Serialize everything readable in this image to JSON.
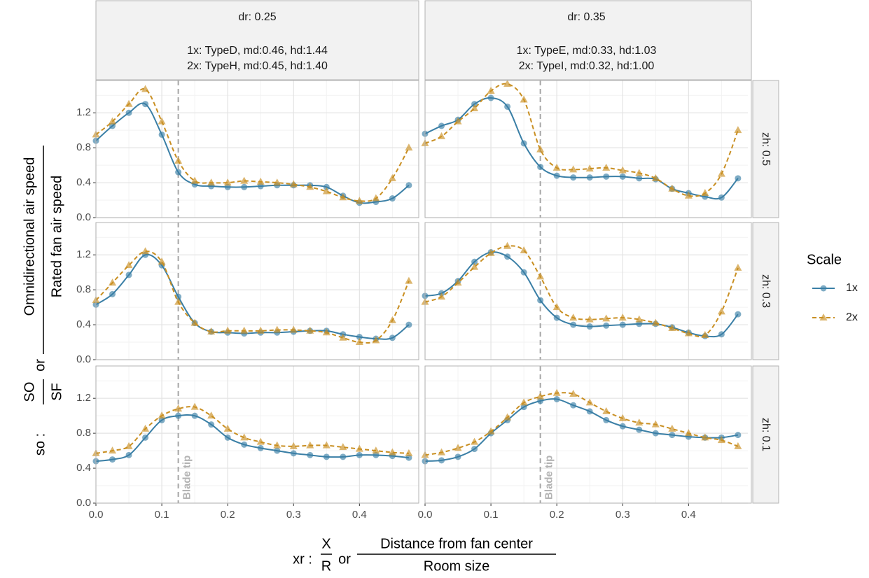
{
  "facets": {
    "columns": [
      [
        "dr: 0.25",
        "1x: TypeD, md:0.46, hd:1.44",
        "2x: TypeH, md:0.45, hd:1.40"
      ],
      [
        "dr: 0.35",
        "1x: TypeE, md:0.33, hd:1.03",
        "2x: TypeI, md:0.32, hd:1.00"
      ]
    ],
    "rows": [
      "zh: 0.5",
      "zh: 0.3",
      "zh: 0.1"
    ]
  },
  "x_label": {
    "prefix": "xr :",
    "num": "X",
    "den": "R",
    "or": "or",
    "num2": "Distance from fan center",
    "den2": "Room size"
  },
  "y_label": {
    "prefix": "so :",
    "num": "SO",
    "den": "SF",
    "or": "or",
    "num2": "Omnidirectional air speed",
    "den2": "Rated fan air speed"
  },
  "legend": {
    "title": "Scale"
  },
  "chart_data": [
    {
      "type": "line",
      "vline": 0.125,
      "xlim": [
        0,
        0.49
      ],
      "ylim": [
        0,
        1.57
      ],
      "xticks": [
        {
          "value": 0,
          "label": "0.0"
        },
        0.1,
        0.2,
        0.3,
        0.4
      ],
      "yticks": [
        {
          "value": 0,
          "label": "0.0"
        },
        0.4,
        0.8,
        1.2
      ],
      "x": [
        0,
        0.025,
        0.05,
        0.075,
        0.1,
        0.125,
        0.15,
        0.175,
        0.2,
        0.225,
        0.25,
        0.275,
        0.3,
        0.325,
        0.35,
        0.375,
        0.4,
        0.425,
        0.45,
        0.475
      ],
      "series": [
        {
          "name": "1x",
          "color": "#3a7fa6",
          "values": [
            0.88,
            1.05,
            1.2,
            1.3,
            0.95,
            0.52,
            0.38,
            0.36,
            0.35,
            0.35,
            0.36,
            0.37,
            0.37,
            0.37,
            0.35,
            0.25,
            0.17,
            0.18,
            0.22,
            0.37
          ]
        },
        {
          "name": "2x",
          "color": "#c98f22",
          "values": [
            0.95,
            1.1,
            1.3,
            1.47,
            1.1,
            0.65,
            0.42,
            0.4,
            0.4,
            0.42,
            0.41,
            0.4,
            0.38,
            0.35,
            0.3,
            0.23,
            0.19,
            0.22,
            0.45,
            0.8
          ]
        }
      ]
    },
    {
      "type": "line",
      "vline": 0.175,
      "xlim": [
        0,
        0.49
      ],
      "ylim": [
        0,
        1.57
      ],
      "xticks": [
        {
          "value": 0,
          "label": "0.0"
        },
        0.1,
        0.2,
        0.3,
        0.4
      ],
      "yticks": [
        {
          "value": 0,
          "label": "0.0"
        },
        0.4,
        0.8,
        1.2
      ],
      "x": [
        0,
        0.025,
        0.05,
        0.075,
        0.1,
        0.125,
        0.15,
        0.175,
        0.2,
        0.225,
        0.25,
        0.275,
        0.3,
        0.325,
        0.35,
        0.375,
        0.4,
        0.425,
        0.45,
        0.475
      ],
      "series": [
        {
          "name": "1x",
          "color": "#3a7fa6",
          "values": [
            0.96,
            1.05,
            1.12,
            1.3,
            1.37,
            1.27,
            0.85,
            0.58,
            0.48,
            0.46,
            0.46,
            0.47,
            0.47,
            0.45,
            0.44,
            0.33,
            0.28,
            0.24,
            0.23,
            0.45
          ]
        },
        {
          "name": "2x",
          "color": "#c98f22",
          "values": [
            0.85,
            0.93,
            1.1,
            1.25,
            1.45,
            1.53,
            1.35,
            0.78,
            0.57,
            0.55,
            0.56,
            0.57,
            0.54,
            0.51,
            0.45,
            0.33,
            0.25,
            0.28,
            0.5,
            1.0
          ]
        }
      ]
    },
    {
      "type": "line",
      "vline": 0.125,
      "xlim": [
        0,
        0.49
      ],
      "ylim": [
        0,
        1.57
      ],
      "xticks": [
        {
          "value": 0,
          "label": "0.0"
        },
        0.1,
        0.2,
        0.3,
        0.4
      ],
      "yticks": [
        {
          "value": 0,
          "label": "0.0"
        },
        0.4,
        0.8,
        1.2
      ],
      "x": [
        0,
        0.025,
        0.05,
        0.075,
        0.1,
        0.125,
        0.15,
        0.175,
        0.2,
        0.225,
        0.25,
        0.275,
        0.3,
        0.325,
        0.35,
        0.375,
        0.4,
        0.425,
        0.45,
        0.475
      ],
      "series": [
        {
          "name": "1x",
          "color": "#3a7fa6",
          "values": [
            0.63,
            0.75,
            0.97,
            1.2,
            1.08,
            0.72,
            0.42,
            0.32,
            0.31,
            0.3,
            0.31,
            0.31,
            0.32,
            0.33,
            0.33,
            0.29,
            0.26,
            0.24,
            0.25,
            0.4
          ]
        },
        {
          "name": "2x",
          "color": "#c98f22",
          "values": [
            0.68,
            0.88,
            1.08,
            1.24,
            1.12,
            0.66,
            0.42,
            0.32,
            0.33,
            0.33,
            0.33,
            0.34,
            0.34,
            0.33,
            0.31,
            0.25,
            0.2,
            0.22,
            0.45,
            0.9
          ]
        }
      ]
    },
    {
      "type": "line",
      "vline": 0.175,
      "xlim": [
        0,
        0.49
      ],
      "ylim": [
        0,
        1.57
      ],
      "xticks": [
        {
          "value": 0,
          "label": "0.0"
        },
        0.1,
        0.2,
        0.3,
        0.4
      ],
      "yticks": [
        {
          "value": 0,
          "label": "0.0"
        },
        0.4,
        0.8,
        1.2
      ],
      "x": [
        0,
        0.025,
        0.05,
        0.075,
        0.1,
        0.125,
        0.15,
        0.175,
        0.2,
        0.225,
        0.25,
        0.275,
        0.3,
        0.325,
        0.35,
        0.375,
        0.4,
        0.425,
        0.45,
        0.475
      ],
      "series": [
        {
          "name": "1x",
          "color": "#3a7fa6",
          "values": [
            0.73,
            0.76,
            0.9,
            1.12,
            1.23,
            1.18,
            1.0,
            0.68,
            0.48,
            0.4,
            0.38,
            0.39,
            0.4,
            0.41,
            0.41,
            0.37,
            0.31,
            0.27,
            0.29,
            0.52
          ]
        },
        {
          "name": "2x",
          "color": "#c98f22",
          "values": [
            0.66,
            0.72,
            0.88,
            1.06,
            1.22,
            1.3,
            1.25,
            0.95,
            0.6,
            0.48,
            0.46,
            0.47,
            0.48,
            0.46,
            0.42,
            0.36,
            0.3,
            0.28,
            0.55,
            1.05
          ]
        }
      ]
    },
    {
      "type": "line",
      "vline": 0.125,
      "vline_label": "Blade tip",
      "xlim": [
        0,
        0.49
      ],
      "ylim": [
        0,
        1.57
      ],
      "xticks": [
        {
          "value": 0,
          "label": "0.0"
        },
        0.1,
        0.2,
        0.3,
        0.4
      ],
      "yticks": [
        {
          "value": 0,
          "label": "0.0"
        },
        0.4,
        0.8,
        1.2
      ],
      "x": [
        0,
        0.025,
        0.05,
        0.075,
        0.1,
        0.125,
        0.15,
        0.175,
        0.2,
        0.225,
        0.25,
        0.275,
        0.3,
        0.325,
        0.35,
        0.375,
        0.4,
        0.425,
        0.45,
        0.475
      ],
      "series": [
        {
          "name": "1x",
          "color": "#3a7fa6",
          "values": [
            0.48,
            0.5,
            0.55,
            0.75,
            0.95,
            1.0,
            1.0,
            0.9,
            0.75,
            0.67,
            0.63,
            0.6,
            0.57,
            0.55,
            0.53,
            0.53,
            0.55,
            0.55,
            0.54,
            0.52
          ]
        },
        {
          "name": "2x",
          "color": "#c98f22",
          "values": [
            0.57,
            0.6,
            0.65,
            0.85,
            1.0,
            1.08,
            1.1,
            1.0,
            0.85,
            0.75,
            0.7,
            0.66,
            0.65,
            0.66,
            0.66,
            0.64,
            0.62,
            0.6,
            0.58,
            0.57
          ]
        }
      ]
    },
    {
      "type": "line",
      "vline": 0.175,
      "vline_label": "Blade tip",
      "xlim": [
        0,
        0.49
      ],
      "ylim": [
        0,
        1.57
      ],
      "xticks": [
        {
          "value": 0,
          "label": "0.0"
        },
        0.1,
        0.2,
        0.3,
        0.4
      ],
      "yticks": [
        {
          "value": 0,
          "label": "0.0"
        },
        0.4,
        0.8,
        1.2
      ],
      "x": [
        0,
        0.025,
        0.05,
        0.075,
        0.1,
        0.125,
        0.15,
        0.175,
        0.2,
        0.225,
        0.25,
        0.275,
        0.3,
        0.325,
        0.35,
        0.375,
        0.4,
        0.425,
        0.45,
        0.475
      ],
      "series": [
        {
          "name": "1x",
          "color": "#3a7fa6",
          "values": [
            0.48,
            0.49,
            0.53,
            0.62,
            0.8,
            0.95,
            1.1,
            1.17,
            1.19,
            1.12,
            1.05,
            0.95,
            0.88,
            0.84,
            0.8,
            0.78,
            0.76,
            0.75,
            0.75,
            0.78
          ]
        },
        {
          "name": "2x",
          "color": "#c98f22",
          "values": [
            0.55,
            0.58,
            0.63,
            0.7,
            0.82,
            0.98,
            1.15,
            1.22,
            1.26,
            1.25,
            1.15,
            1.05,
            0.97,
            0.92,
            0.9,
            0.85,
            0.8,
            0.75,
            0.72,
            0.65
          ]
        }
      ]
    }
  ]
}
